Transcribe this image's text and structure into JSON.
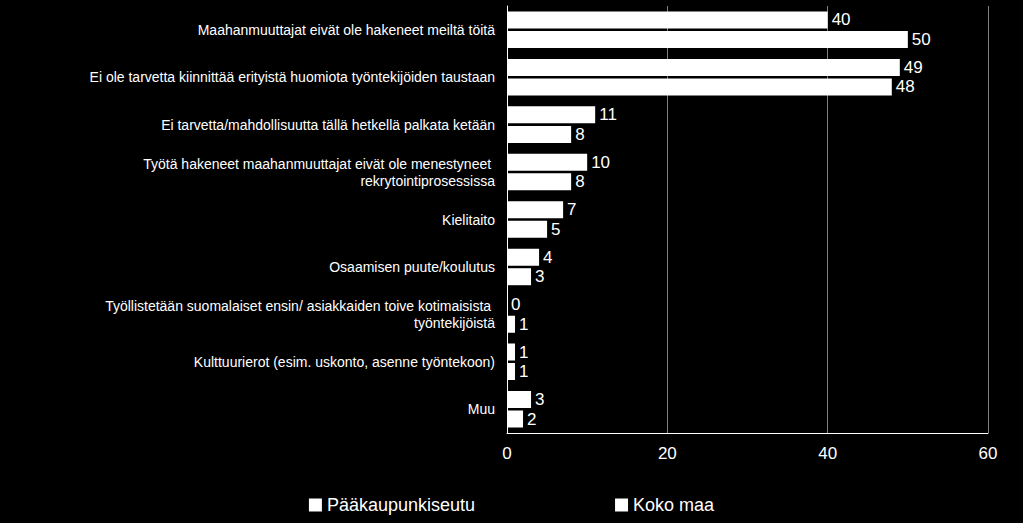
{
  "chart_data": {
    "type": "bar",
    "orientation": "horizontal",
    "categories": [
      "Maahanmuuttajat eivät ole hakeneet meiltä töitä",
      "Ei ole tarvetta kiinnittää erityistä huomiota työntekijöiden taustaan",
      "Ei tarvetta/mahdollisuutta tällä hetkellä palkata ketään",
      "Työtä hakeneet maahanmuuttajat eivät ole menestyneet rekrytointiprosessissa",
      "Kielitaito",
      "Osaamisen puute/koulutus",
      "Työllistetään suomalaiset ensin/ asiakkaiden toive kotimaisista työntekijöistä",
      "Kulttuurierot (esim. uskonto, asenne työntekoon)",
      "Muu"
    ],
    "series": [
      {
        "name": "Pääkaupunkiseutu",
        "color": "#ffffff",
        "values": [
          40,
          49,
          11,
          10,
          7,
          4,
          0,
          1,
          3
        ]
      },
      {
        "name": "Koko maa",
        "color": "#ffffff",
        "values": [
          50,
          48,
          8,
          8,
          5,
          3,
          1,
          1,
          2
        ]
      }
    ],
    "xlim": [
      0,
      60
    ],
    "xticks": [
      0,
      20,
      40,
      60
    ],
    "grid": true,
    "legend": "bottom",
    "data_labels": true
  }
}
